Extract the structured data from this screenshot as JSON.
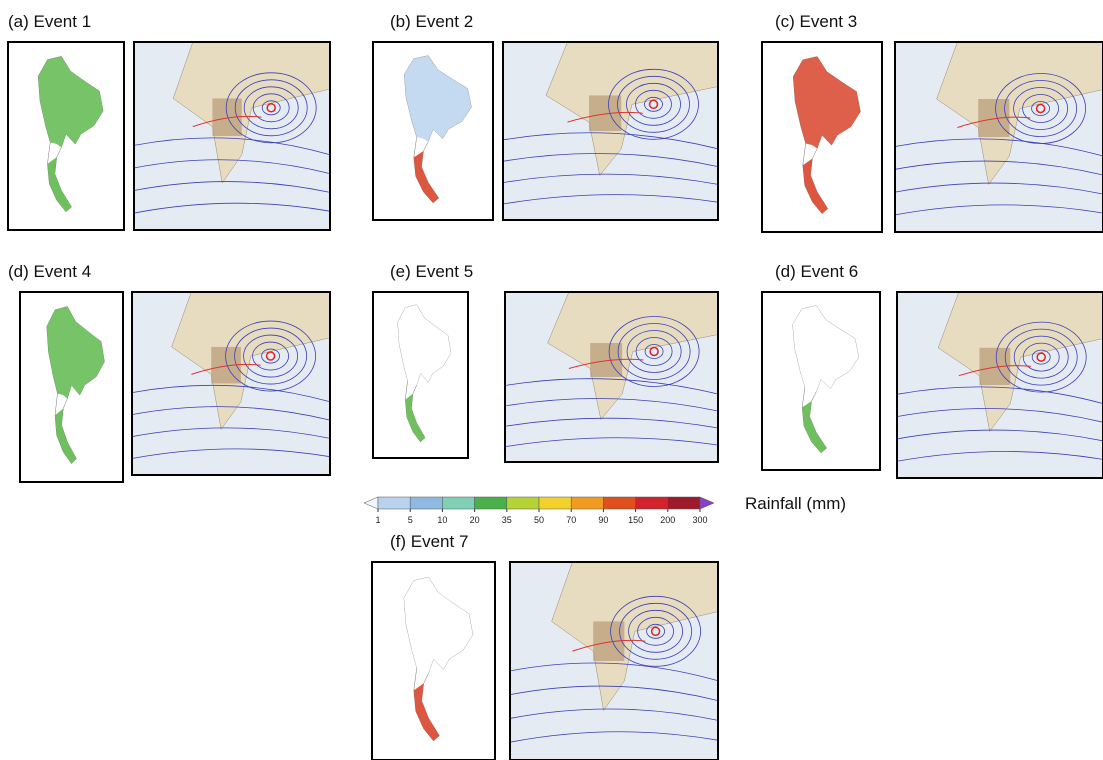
{
  "panels": [
    {
      "title": "(a) Event 1"
    },
    {
      "title": "(b) Event 2"
    },
    {
      "title": "(c) Event 3"
    },
    {
      "title": "(d) Event 4"
    },
    {
      "title": "(e) Event 5"
    },
    {
      "title": "(d) Event 6"
    },
    {
      "title": "(f) Event 7"
    }
  ],
  "colorbar": {
    "title": "Rainfall (mm)",
    "ticks": [
      1,
      5,
      10,
      20,
      35,
      50,
      70,
      90,
      150,
      200,
      300
    ],
    "colors": [
      "#f2f6fb",
      "#b9d3ee",
      "#8fb9e3",
      "#7fd0b4",
      "#49b04a",
      "#b5d334",
      "#f2d12c",
      "#f29b23",
      "#e0501e",
      "#d2222c",
      "#9e1a2a",
      "#8a3fc9"
    ]
  }
}
